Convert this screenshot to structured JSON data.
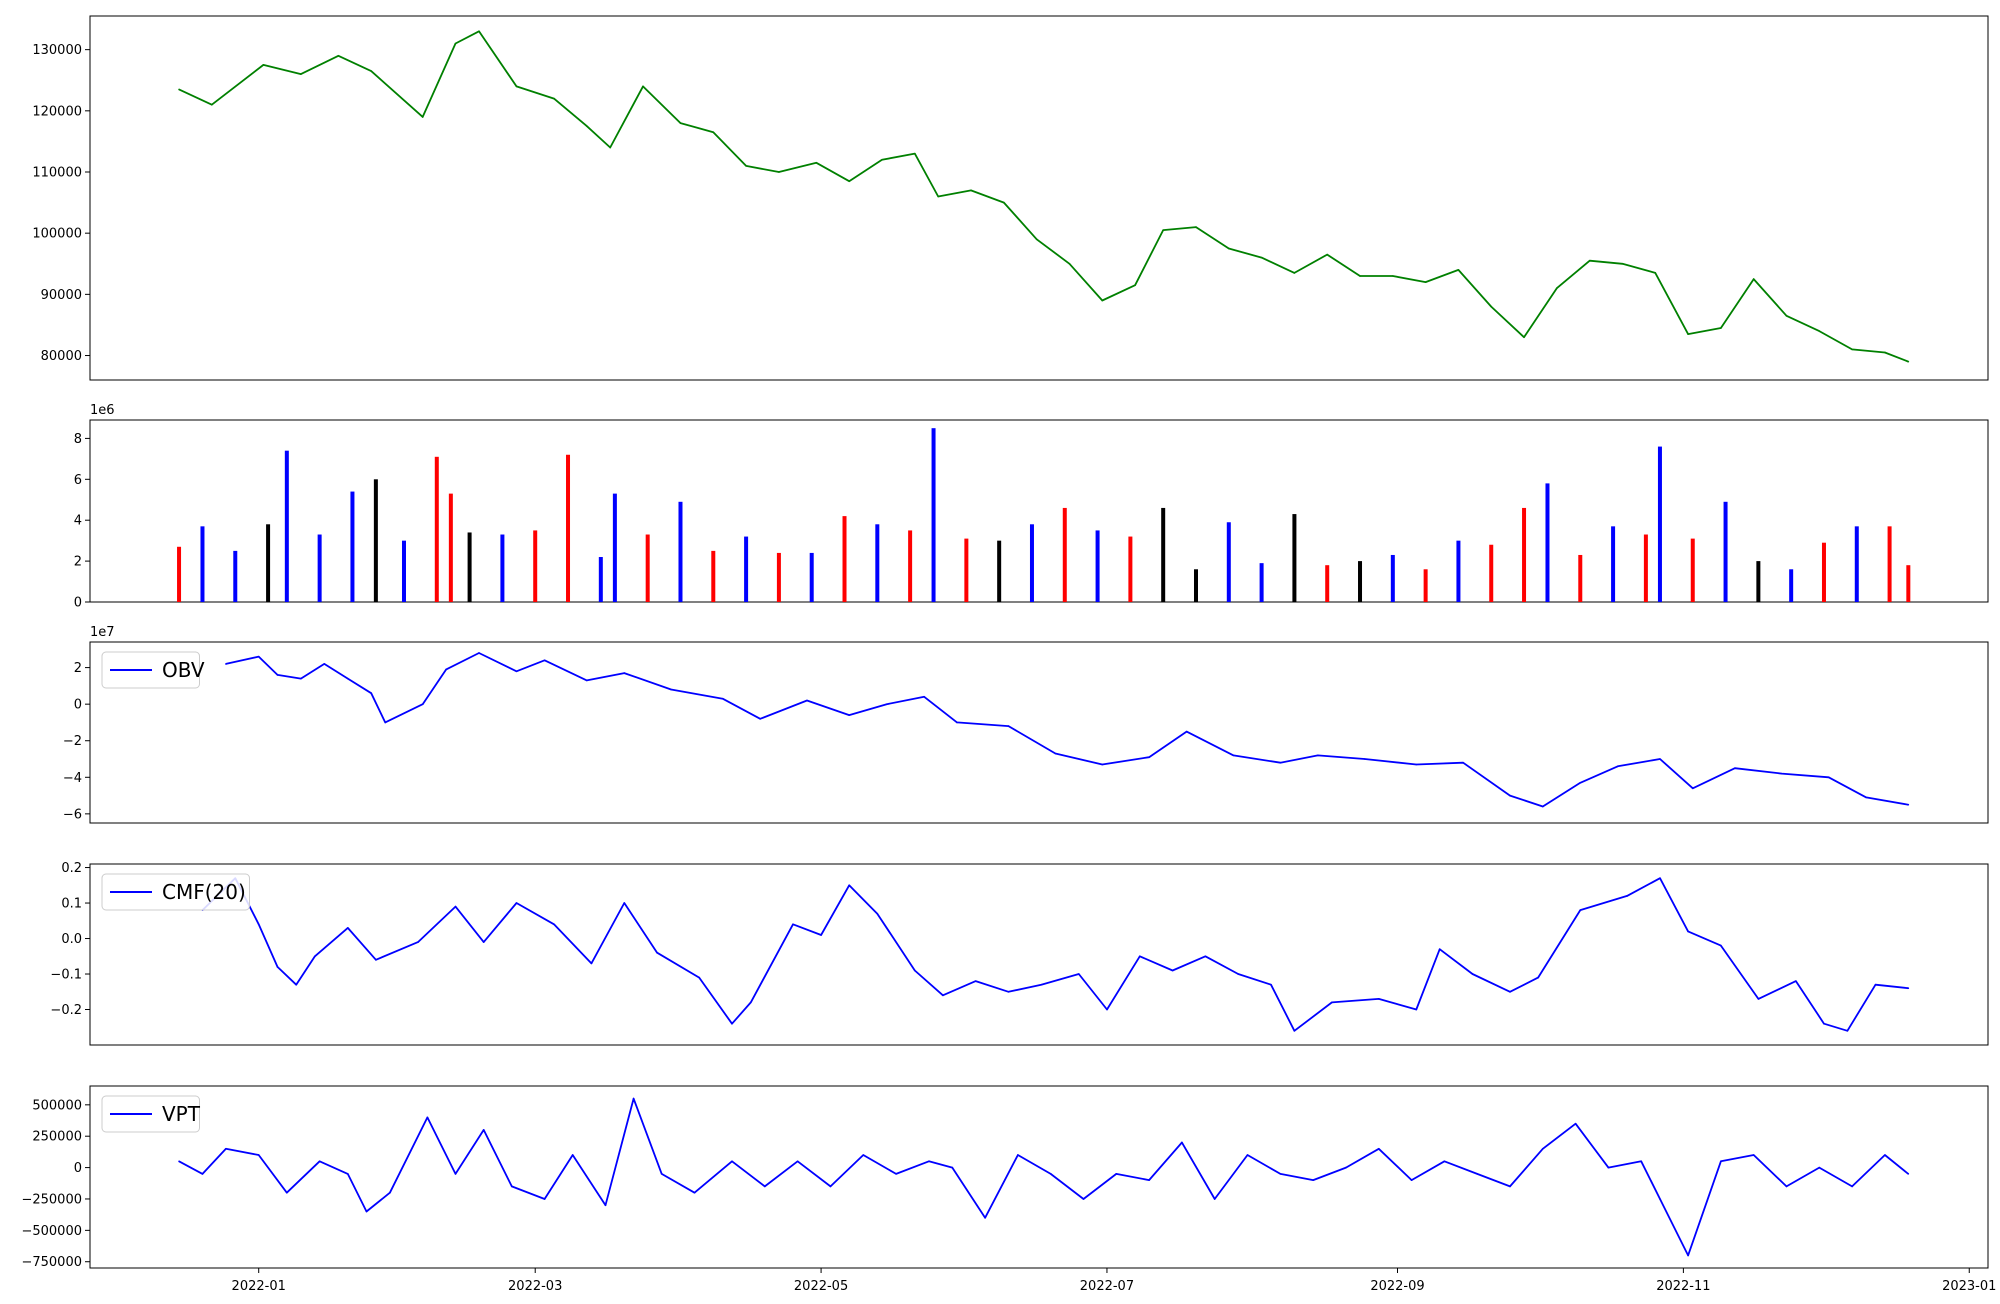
{
  "chart_data": [
    {
      "type": "line",
      "panel": "price",
      "color": "#008000",
      "ylim": [
        76000,
        135500
      ],
      "yticks": [
        80000,
        90000,
        100000,
        110000,
        120000,
        130000
      ],
      "ytick_labels": [
        "80000",
        "90000",
        "100000",
        "110000",
        "120000",
        "130000"
      ],
      "x_dates": [
        "2021-12-15",
        "2021-12-22",
        "2022-01-02",
        "2022-01-10",
        "2022-01-18",
        "2022-01-25",
        "2022-02-05",
        "2022-02-12",
        "2022-02-17",
        "2022-02-25",
        "2022-03-05",
        "2022-03-12",
        "2022-03-17",
        "2022-03-24",
        "2022-04-01",
        "2022-04-08",
        "2022-04-15",
        "2022-04-22",
        "2022-04-30",
        "2022-05-07",
        "2022-05-14",
        "2022-05-21",
        "2022-05-26",
        "2022-06-02",
        "2022-06-09",
        "2022-06-16",
        "2022-06-23",
        "2022-06-30",
        "2022-07-07",
        "2022-07-13",
        "2022-07-20",
        "2022-07-27",
        "2022-08-03",
        "2022-08-10",
        "2022-08-17",
        "2022-08-24",
        "2022-08-31",
        "2022-09-07",
        "2022-09-14",
        "2022-09-21",
        "2022-09-28",
        "2022-10-05",
        "2022-10-12",
        "2022-10-19",
        "2022-10-26",
        "2022-11-02",
        "2022-11-09",
        "2022-11-16",
        "2022-11-23",
        "2022-11-30",
        "2022-12-07",
        "2022-12-14",
        "2022-12-19"
      ],
      "values": [
        123500,
        121000,
        127500,
        126000,
        129000,
        126500,
        119000,
        131000,
        133000,
        124000,
        122000,
        117500,
        114000,
        124000,
        118000,
        116500,
        111000,
        110000,
        111500,
        108500,
        112000,
        113000,
        106000,
        107000,
        105000,
        99000,
        95000,
        89000,
        91500,
        100500,
        101000,
        97500,
        96000,
        93500,
        96500,
        93000,
        93000,
        92000,
        94000,
        88000,
        83000,
        91000,
        95500,
        95000,
        93500,
        83500,
        84500,
        92500,
        86500,
        84000,
        81000,
        80500,
        79000
      ]
    },
    {
      "type": "bar",
      "panel": "volume",
      "offset_label": "1e6",
      "ylim": [
        0,
        8.9
      ],
      "yticks": [
        0,
        2,
        4,
        6,
        8
      ],
      "ytick_labels": [
        "0",
        "2",
        "4",
        "6",
        "8"
      ],
      "color_up": "#0000ff",
      "color_down": "#ff0000",
      "color_flat": "#000000",
      "x_dates": [
        "2021-12-15",
        "2021-12-20",
        "2021-12-27",
        "2022-01-03",
        "2022-01-07",
        "2022-01-14",
        "2022-01-21",
        "2022-01-26",
        "2022-02-01",
        "2022-02-08",
        "2022-02-11",
        "2022-02-15",
        "2022-02-22",
        "2022-03-01",
        "2022-03-08",
        "2022-03-15",
        "2022-03-18",
        "2022-03-25",
        "2022-04-01",
        "2022-04-08",
        "2022-04-15",
        "2022-04-22",
        "2022-04-29",
        "2022-05-06",
        "2022-05-13",
        "2022-05-20",
        "2022-05-25",
        "2022-06-01",
        "2022-06-08",
        "2022-06-15",
        "2022-06-22",
        "2022-06-29",
        "2022-07-06",
        "2022-07-13",
        "2022-07-20",
        "2022-07-27",
        "2022-08-03",
        "2022-08-10",
        "2022-08-17",
        "2022-08-24",
        "2022-08-31",
        "2022-09-07",
        "2022-09-14",
        "2022-09-21",
        "2022-09-28",
        "2022-10-03",
        "2022-10-10",
        "2022-10-17",
        "2022-10-24",
        "2022-10-27",
        "2022-11-03",
        "2022-11-10",
        "2022-11-17",
        "2022-11-24",
        "2022-12-01",
        "2022-12-08",
        "2022-12-15",
        "2022-12-19"
      ],
      "values": [
        2.7,
        3.7,
        2.5,
        3.8,
        7.4,
        3.3,
        5.4,
        6.0,
        3.0,
        7.1,
        5.3,
        3.4,
        3.3,
        3.5,
        7.2,
        2.2,
        5.3,
        3.3,
        4.9,
        2.5,
        3.2,
        2.4,
        2.4,
        4.2,
        3.8,
        3.5,
        8.5,
        3.1,
        3.0,
        3.8,
        4.6,
        3.5,
        3.2,
        4.6,
        1.6,
        3.9,
        1.9,
        4.3,
        1.8,
        2.0,
        2.3,
        1.6,
        3.0,
        2.8,
        4.6,
        5.8,
        2.3,
        3.7,
        3.3,
        7.6,
        3.1,
        4.9,
        2.0,
        1.6,
        2.9,
        3.7,
        3.7,
        1.8
      ],
      "directions": [
        "down",
        "up",
        "up",
        "black",
        "up",
        "up",
        "up",
        "black",
        "up",
        "down",
        "down",
        "black",
        "up",
        "down",
        "down",
        "up",
        "up",
        "down",
        "up",
        "down",
        "up",
        "down",
        "up",
        "down",
        "up",
        "down",
        "up",
        "down",
        "black",
        "up",
        "down",
        "up",
        "down",
        "black",
        "black",
        "up",
        "up",
        "black",
        "down",
        "black",
        "up",
        "down",
        "up",
        "down",
        "down",
        "up",
        "down",
        "up",
        "down",
        "up",
        "down",
        "up",
        "black",
        "up",
        "down",
        "up",
        "down",
        "down"
      ]
    },
    {
      "type": "line",
      "panel": "obv",
      "offset_label": "1e7",
      "legend": [
        "OBV"
      ],
      "legend_loc": "upper-left",
      "color": "#0000ff",
      "ylim": [
        -6.5,
        3.4
      ],
      "yticks": [
        -6,
        -4,
        -2,
        0,
        2
      ],
      "ytick_labels": [
        "−6",
        "−4",
        "−2",
        "0",
        "2"
      ],
      "x_dates": [
        "2021-12-25",
        "2022-01-01",
        "2022-01-05",
        "2022-01-10",
        "2022-01-15",
        "2022-01-20",
        "2022-01-25",
        "2022-01-28",
        "2022-02-05",
        "2022-02-10",
        "2022-02-17",
        "2022-02-25",
        "2022-03-03",
        "2022-03-12",
        "2022-03-20",
        "2022-03-30",
        "2022-04-10",
        "2022-04-18",
        "2022-04-28",
        "2022-05-07",
        "2022-05-15",
        "2022-05-23",
        "2022-05-30",
        "2022-06-10",
        "2022-06-20",
        "2022-06-30",
        "2022-07-10",
        "2022-07-18",
        "2022-07-28",
        "2022-08-07",
        "2022-08-15",
        "2022-08-25",
        "2022-09-05",
        "2022-09-15",
        "2022-09-25",
        "2022-10-02",
        "2022-10-10",
        "2022-10-18",
        "2022-10-27",
        "2022-11-03",
        "2022-11-12",
        "2022-11-22",
        "2022-12-02",
        "2022-12-10",
        "2022-12-19"
      ],
      "values": [
        2.2,
        2.6,
        1.6,
        1.4,
        2.2,
        1.4,
        0.6,
        -1.0,
        0.0,
        1.9,
        2.8,
        1.8,
        2.4,
        1.3,
        1.7,
        0.8,
        0.3,
        -0.8,
        0.2,
        -0.6,
        0.0,
        0.4,
        -1.0,
        -1.2,
        -2.7,
        -3.3,
        -2.9,
        -1.5,
        -2.8,
        -3.2,
        -2.8,
        -3.0,
        -3.3,
        -3.2,
        -5.0,
        -5.6,
        -4.3,
        -3.4,
        -3.0,
        -4.6,
        -3.5,
        -3.8,
        -4.0,
        -5.1,
        -5.5
      ]
    },
    {
      "type": "line",
      "panel": "cmf",
      "legend": [
        "CMF(20)"
      ],
      "legend_loc": "upper-left",
      "color": "#0000ff",
      "ylim": [
        -0.3,
        0.21
      ],
      "yticks": [
        -0.2,
        -0.1,
        0.0,
        0.1,
        0.2
      ],
      "ytick_labels": [
        "−0.2",
        "−0.1",
        "0.0",
        "0.1",
        "0.2"
      ],
      "x_dates": [
        "2021-12-20",
        "2021-12-27",
        "2022-01-01",
        "2022-01-05",
        "2022-01-09",
        "2022-01-13",
        "2022-01-20",
        "2022-01-26",
        "2022-02-04",
        "2022-02-12",
        "2022-02-18",
        "2022-02-25",
        "2022-03-05",
        "2022-03-13",
        "2022-03-20",
        "2022-03-27",
        "2022-04-05",
        "2022-04-12",
        "2022-04-16",
        "2022-04-25",
        "2022-05-01",
        "2022-05-07",
        "2022-05-13",
        "2022-05-21",
        "2022-05-27",
        "2022-06-03",
        "2022-06-10",
        "2022-06-17",
        "2022-06-25",
        "2022-07-01",
        "2022-07-08",
        "2022-07-15",
        "2022-07-22",
        "2022-07-29",
        "2022-08-05",
        "2022-08-10",
        "2022-08-18",
        "2022-08-28",
        "2022-09-05",
        "2022-09-10",
        "2022-09-17",
        "2022-09-25",
        "2022-10-01",
        "2022-10-10",
        "2022-10-20",
        "2022-10-27",
        "2022-11-02",
        "2022-11-09",
        "2022-11-17",
        "2022-11-25",
        "2022-12-01",
        "2022-12-06",
        "2022-12-12",
        "2022-12-19"
      ],
      "values": [
        0.08,
        0.17,
        0.04,
        -0.08,
        -0.13,
        -0.05,
        0.03,
        -0.06,
        -0.01,
        0.09,
        -0.01,
        0.1,
        0.04,
        -0.07,
        0.1,
        -0.04,
        -0.11,
        -0.24,
        -0.18,
        0.04,
        0.01,
        0.15,
        0.07,
        -0.09,
        -0.16,
        -0.12,
        -0.15,
        -0.13,
        -0.1,
        -0.2,
        -0.05,
        -0.09,
        -0.05,
        -0.1,
        -0.13,
        -0.26,
        -0.18,
        -0.17,
        -0.2,
        -0.03,
        -0.1,
        -0.15,
        -0.11,
        0.08,
        0.12,
        0.17,
        0.02,
        -0.02,
        -0.17,
        -0.12,
        -0.24,
        -0.26,
        -0.13,
        -0.14
      ]
    },
    {
      "type": "line",
      "panel": "vpt",
      "legend": [
        "VPT"
      ],
      "legend_loc": "upper-left",
      "color": "#0000ff",
      "ylim": [
        -800000,
        650000
      ],
      "yticks": [
        -750000,
        -500000,
        -250000,
        0,
        250000,
        500000
      ],
      "ytick_labels": [
        "−750000",
        "−500000",
        "−250000",
        "0",
        "250000",
        "500000"
      ],
      "xlabel": "",
      "xticks": [
        "2022-01-01",
        "2022-03-01",
        "2022-05-01",
        "2022-07-01",
        "2022-09-01",
        "2022-11-01",
        "2023-01-01"
      ],
      "xtick_labels": [
        "2022-01",
        "2022-03",
        "2022-05",
        "2022-07",
        "2022-09",
        "2022-11",
        "2023-01"
      ],
      "x_dates": [
        "2021-12-15",
        "2021-12-20",
        "2021-12-25",
        "2022-01-01",
        "2022-01-07",
        "2022-01-14",
        "2022-01-20",
        "2022-01-24",
        "2022-01-29",
        "2022-02-06",
        "2022-02-12",
        "2022-02-18",
        "2022-02-24",
        "2022-03-03",
        "2022-03-09",
        "2022-03-16",
        "2022-03-22",
        "2022-03-28",
        "2022-04-04",
        "2022-04-12",
        "2022-04-19",
        "2022-04-26",
        "2022-05-03",
        "2022-05-10",
        "2022-05-17",
        "2022-05-24",
        "2022-05-29",
        "2022-06-05",
        "2022-06-12",
        "2022-06-19",
        "2022-06-26",
        "2022-07-03",
        "2022-07-10",
        "2022-07-17",
        "2022-07-24",
        "2022-07-31",
        "2022-08-07",
        "2022-08-14",
        "2022-08-21",
        "2022-08-28",
        "2022-09-04",
        "2022-09-11",
        "2022-09-18",
        "2022-09-25",
        "2022-10-02",
        "2022-10-09",
        "2022-10-16",
        "2022-10-23",
        "2022-10-27",
        "2022-11-02",
        "2022-11-09",
        "2022-11-16",
        "2022-11-23",
        "2022-11-30",
        "2022-12-07",
        "2022-12-14",
        "2022-12-19"
      ],
      "values": [
        50000,
        -50000,
        150000,
        100000,
        -200000,
        50000,
        -50000,
        -350000,
        -200000,
        400000,
        -50000,
        300000,
        -150000,
        -250000,
        100000,
        -300000,
        550000,
        -50000,
        -200000,
        50000,
        -150000,
        50000,
        -150000,
        100000,
        -50000,
        50000,
        0,
        -400000,
        100000,
        -50000,
        -250000,
        -50000,
        -100000,
        200000,
        -250000,
        100000,
        -50000,
        -100000,
        0,
        150000,
        -100000,
        50000,
        -50000,
        -150000,
        150000,
        350000,
        0,
        50000,
        -250000,
        -700000,
        50000,
        100000,
        -150000,
        0,
        -150000,
        100000,
        -50000
      ]
    }
  ]
}
